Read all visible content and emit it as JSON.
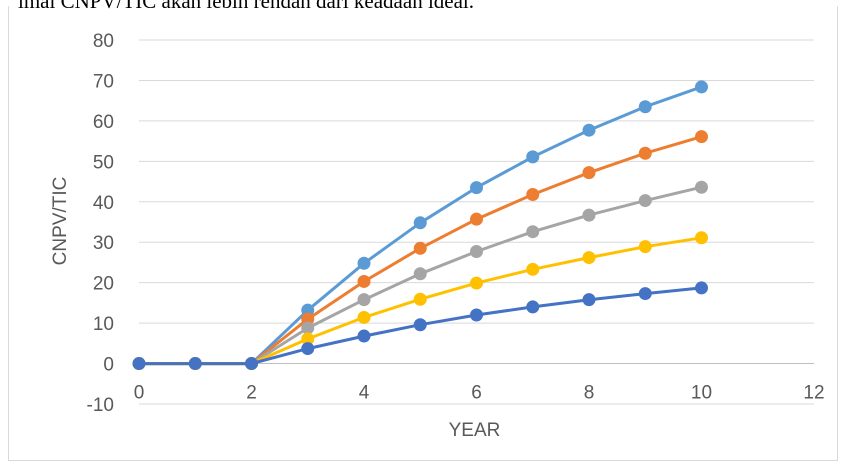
{
  "background_text": "imal CNPV/TIC akan lebih rendah dari keadaan ideal.",
  "chart_data": {
    "type": "scatter",
    "xlabel": "YEAR",
    "ylabel": "CNPV/TIC",
    "xlim": [
      0,
      12
    ],
    "ylim": [
      -10,
      80
    ],
    "xticks": [
      0,
      2,
      4,
      6,
      8,
      10,
      12
    ],
    "yticks": [
      -10,
      0,
      10,
      20,
      30,
      40,
      50,
      60,
      70,
      80
    ],
    "grid": "horizontal",
    "legend": "none",
    "series": [
      {
        "color": "#5b9bd5",
        "x": [
          0,
          1,
          2,
          3,
          4,
          5,
          6,
          7,
          8,
          9,
          10
        ],
        "y": [
          0,
          0,
          0,
          13.2,
          24.8,
          34.8,
          43.5,
          51.1,
          57.7,
          63.5,
          68.4
        ]
      },
      {
        "color": "#ed7d31",
        "x": [
          0,
          1,
          2,
          3,
          4,
          5,
          6,
          7,
          8,
          9,
          10
        ],
        "y": [
          0,
          0,
          0,
          11.0,
          20.3,
          28.5,
          35.7,
          41.8,
          47.2,
          52.0,
          56.1
        ]
      },
      {
        "color": "#a5a5a5",
        "x": [
          0,
          1,
          2,
          3,
          4,
          5,
          6,
          7,
          8,
          9,
          10
        ],
        "y": [
          0,
          0,
          0,
          8.8,
          15.8,
          22.2,
          27.7,
          32.6,
          36.7,
          40.3,
          43.6
        ]
      },
      {
        "color": "#ffc000",
        "x": [
          0,
          1,
          2,
          3,
          4,
          5,
          6,
          7,
          8,
          9,
          10
        ],
        "y": [
          0,
          0,
          0,
          6.1,
          11.4,
          15.9,
          19.9,
          23.3,
          26.2,
          28.9,
          31.1
        ]
      },
      {
        "color": "#4472c4",
        "x": [
          0,
          1,
          2,
          3,
          4,
          5,
          6,
          7,
          8,
          9,
          10
        ],
        "y": [
          0,
          0,
          0,
          3.7,
          6.8,
          9.6,
          12.0,
          14.0,
          15.8,
          17.3,
          18.7
        ]
      }
    ]
  }
}
